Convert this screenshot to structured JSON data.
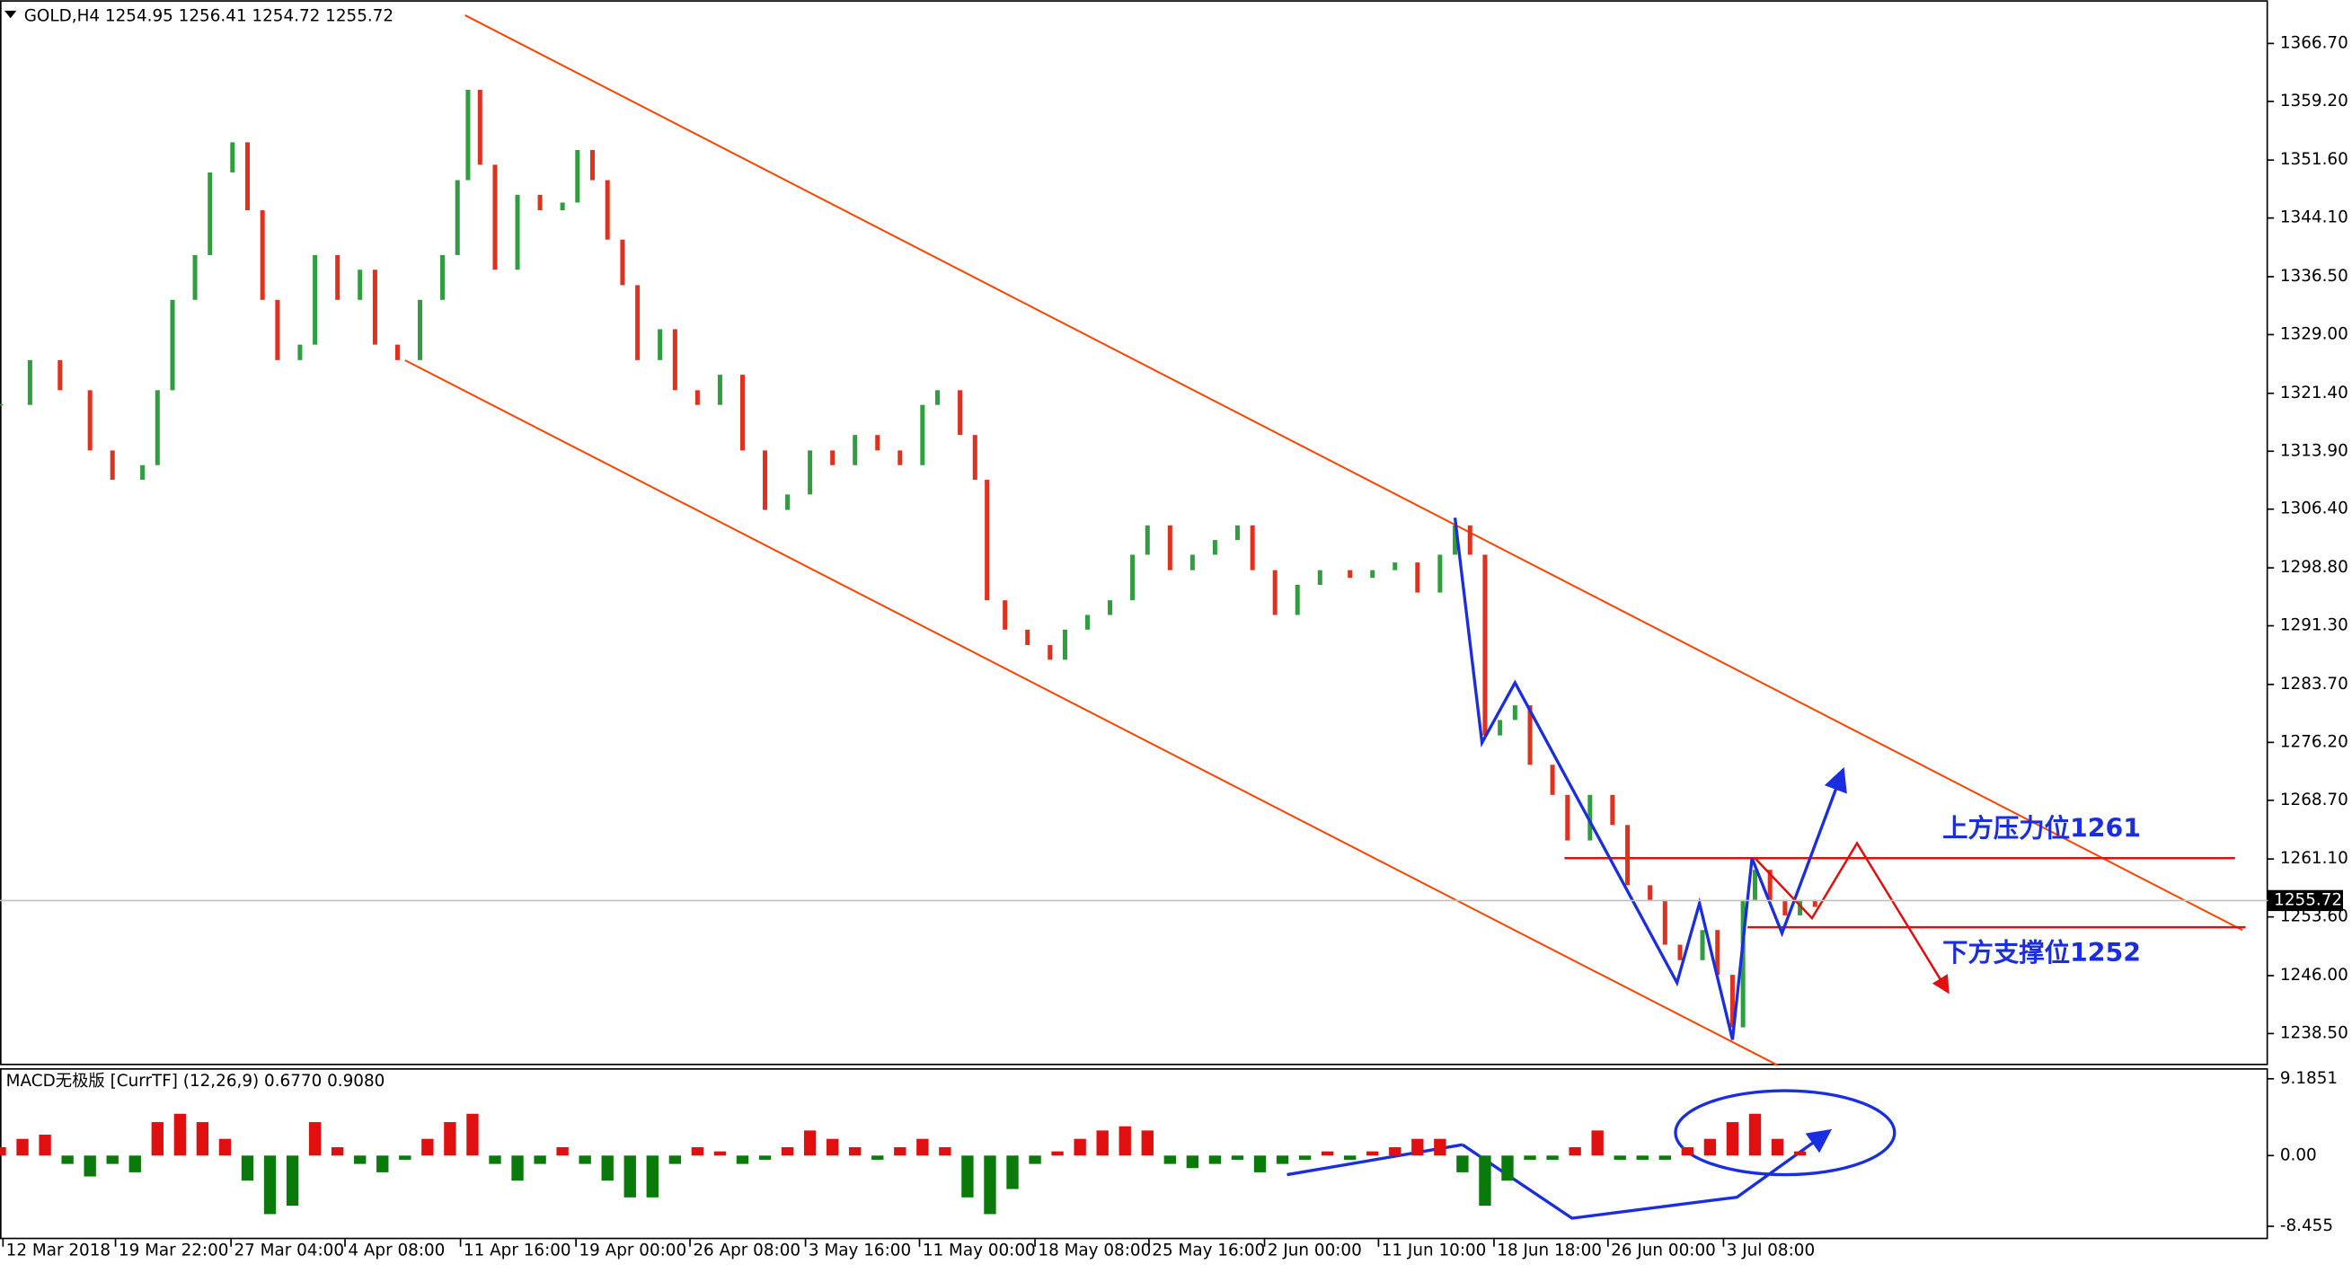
{
  "chart_data": [
    {
      "type": "candlestick",
      "title": "GOLD,H4  1254.95 1256.41 1254.72 1255.72",
      "up_color": "#2e9e3e",
      "down_color": "#e0301e",
      "x": [
        0,
        20,
        40,
        60,
        75,
        95,
        105,
        115,
        130,
        140,
        155,
        165,
        175,
        185,
        200,
        210,
        225,
        240,
        250,
        265,
        280,
        295,
        305,
        312,
        320,
        330,
        345,
        360,
        375,
        385,
        395,
        405,
        415,
        425,
        440,
        450,
        465,
        480,
        495,
        510,
        525,
        540,
        555,
        570,
        585,
        600,
        615,
        625,
        640,
        650,
        658,
        670,
        685,
        700,
        710,
        725,
        740,
        755,
        765,
        780,
        795,
        810,
        825,
        835,
        850,
        865,
        880,
        900,
        915,
        930,
        945,
        960,
        970,
        980,
        990,
        1000,
        1010,
        1020,
        1035,
        1045,
        1060,
        1075,
        1085,
        1100,
        1110,
        1120,
        1135,
        1145,
        1155,
        1162,
        1170,
        1180,
        1190,
        1200,
        1210
      ],
      "values": [
        1319.9,
        1325.7,
        1321.8,
        1314.0,
        1310.2,
        1312.1,
        1321.8,
        1333.5,
        1339.3,
        1350.0,
        1353.9,
        1345.1,
        1333.5,
        1325.7,
        1327.7,
        1339.3,
        1333.5,
        1337.4,
        1327.7,
        1325.7,
        1333.5,
        1339.3,
        1349.0,
        1360.7,
        1351.0,
        1337.4,
        1347.1,
        1345.1,
        1346.1,
        1352.9,
        1349.0,
        1341.3,
        1335.4,
        1325.7,
        1329.7,
        1321.8,
        1319.9,
        1323.8,
        1314.0,
        1306.3,
        1308.3,
        1314.0,
        1312.1,
        1316.0,
        1314.0,
        1312.1,
        1319.9,
        1321.8,
        1316.0,
        1310.2,
        1294.6,
        1290.8,
        1288.8,
        1286.9,
        1290.8,
        1292.7,
        1294.6,
        1300.5,
        1304.3,
        1298.5,
        1300.5,
        1302.4,
        1304.3,
        1298.5,
        1292.7,
        1296.6,
        1298.5,
        1297.5,
        1298.5,
        1299.5,
        1295.6,
        1300.5,
        1304.3,
        1300.5,
        1277.1,
        1279.1,
        1281.0,
        1273.3,
        1269.4,
        1263.5,
        1269.4,
        1265.5,
        1257.7,
        1255.8,
        1250.0,
        1248.0,
        1251.9,
        1246.1,
        1239.3,
        1255.8,
        1259.7,
        1255.8,
        1253.8,
        1255.8,
        1254.9
      ],
      "xlim": [
        0,
        1512
      ],
      "xticks": [
        {
          "value": 2,
          "label": "12 Mar 2018"
        },
        {
          "value": 77,
          "label": "19 Mar 22:00"
        },
        {
          "value": 154,
          "label": "27 Mar 04:00"
        },
        {
          "value": 230,
          "label": "4 Apr 08:00"
        },
        {
          "value": 307,
          "label": "11 Apr 16:00"
        },
        {
          "value": 384,
          "label": "19 Apr 00:00"
        },
        {
          "value": 460,
          "label": "26 Apr 08:00"
        },
        {
          "value": 537,
          "label": "3 May 16:00"
        },
        {
          "value": 613,
          "label": "11 May 00:00"
        },
        {
          "value": 690,
          "label": "18 May 08:00"
        },
        {
          "value": 766,
          "label": "25 May 16:00"
        },
        {
          "value": 843,
          "label": "2 Jun 00:00"
        },
        {
          "value": 919,
          "label": "11 Jun 10:00"
        },
        {
          "value": 996,
          "label": "18 Jun 18:00"
        },
        {
          "value": 1072,
          "label": "26 Jun 00:00"
        },
        {
          "value": 1149,
          "label": "3 Jul 08:00"
        }
      ],
      "ylim": [
        1234.4,
        1372.3
      ],
      "yticks": [
        {
          "value": 1366.7,
          "label": "1366.70"
        },
        {
          "value": 1359.2,
          "label": "1359.20"
        },
        {
          "value": 1351.6,
          "label": "1351.60"
        },
        {
          "value": 1344.1,
          "label": "1344.10"
        },
        {
          "value": 1336.5,
          "label": "1336.50"
        },
        {
          "value": 1329,
          "label": "1329.00"
        },
        {
          "value": 1321.4,
          "label": "1321.40"
        },
        {
          "value": 1313.9,
          "label": "1313.90"
        },
        {
          "value": 1306.4,
          "label": "1306.40"
        },
        {
          "value": 1298.8,
          "label": "1298.80"
        },
        {
          "value": 1291.3,
          "label": "1291.30"
        },
        {
          "value": 1283.7,
          "label": "1283.70"
        },
        {
          "value": 1276.2,
          "label": "1276.20"
        },
        {
          "value": 1268.7,
          "label": "1268.70"
        },
        {
          "value": 1261.1,
          "label": "1261.10"
        },
        {
          "value": 1253.6,
          "label": "1253.60"
        },
        {
          "value": 1246,
          "label": "1246.00"
        },
        {
          "value": 1238.5,
          "label": "1238.50"
        }
      ],
      "current_price": {
        "value": 1255.72,
        "label": "1255.72"
      },
      "annotations": [
        "上方压力位1261",
        "下方支撑位1252"
      ]
    },
    {
      "type": "bar",
      "title": "MACD无极版 [CurrTF] (12,26,9) 0.6770 0.9080",
      "up_color": "#e01010",
      "down_color": "#0a7a0a",
      "x": [
        0,
        15,
        30,
        45,
        60,
        75,
        90,
        105,
        120,
        135,
        150,
        165,
        180,
        195,
        210,
        225,
        240,
        255,
        270,
        285,
        300,
        315,
        330,
        345,
        360,
        375,
        390,
        405,
        420,
        435,
        450,
        465,
        480,
        495,
        510,
        525,
        540,
        555,
        570,
        585,
        600,
        615,
        630,
        645,
        660,
        675,
        690,
        705,
        720,
        735,
        750,
        765,
        780,
        795,
        810,
        825,
        840,
        855,
        870,
        885,
        900,
        915,
        930,
        945,
        960,
        975,
        990,
        1005,
        1020,
        1035,
        1050,
        1065,
        1080,
        1095,
        1110,
        1125,
        1140,
        1155,
        1170,
        1185,
        1200
      ],
      "values": [
        1,
        2,
        2.5,
        -1,
        -2.5,
        -1,
        -2,
        4,
        5,
        4,
        2,
        -3,
        -7,
        -6,
        4,
        1,
        -1,
        -2,
        -0.5,
        2,
        4,
        5,
        -1,
        -3,
        -1,
        1,
        -1,
        -3,
        -5,
        -5,
        -1,
        1,
        0.5,
        -1,
        -0.5,
        1,
        3,
        2,
        1,
        -0.5,
        1,
        2,
        1,
        -5,
        -7,
        -4,
        -1,
        0.5,
        2,
        3,
        3.5,
        3,
        -1,
        -1.5,
        -1,
        -0.5,
        -2,
        -1,
        -0.5,
        0.5,
        -0.5,
        0.5,
        1,
        2,
        2,
        -2,
        -6,
        -3,
        -0.5,
        -0.5,
        1,
        3,
        -0.5,
        -0.5,
        -0.5,
        1,
        2,
        4,
        5,
        2,
        0.5
      ],
      "xlim": [
        0,
        1512
      ],
      "ylim": [
        -10.0,
        10.45
      ],
      "yticks": [
        9.1851,
        {
          "value": 0,
          "label": "0.00"
        },
        -8.455
      ]
    }
  ]
}
